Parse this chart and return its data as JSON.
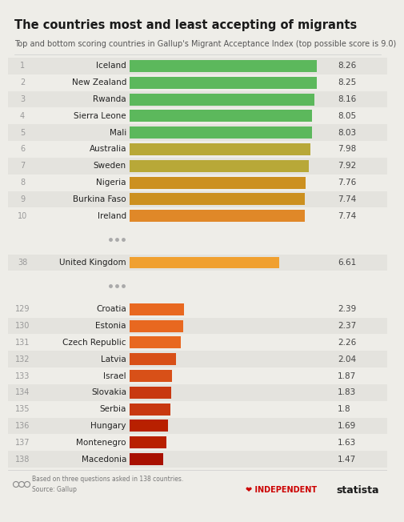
{
  "title": "The countries most and least accepting of migrants",
  "subtitle": "Top and bottom scoring countries in Gallup's Migrant Acceptance Index (top possible score is 9.0)",
  "background_color": "#eeede8",
  "rows": [
    {
      "rank": "1",
      "country": "Iceland",
      "value": 8.26,
      "color": "#5cb85c",
      "sep_before": false,
      "bold": false
    },
    {
      "rank": "2",
      "country": "New Zealand",
      "value": 8.25,
      "color": "#5cb85c",
      "sep_before": false,
      "bold": false
    },
    {
      "rank": "3",
      "country": "Rwanda",
      "value": 8.16,
      "color": "#5cb85c",
      "sep_before": false,
      "bold": false
    },
    {
      "rank": "4",
      "country": "Sierra Leone",
      "value": 8.05,
      "color": "#5cb85c",
      "sep_before": false,
      "bold": false
    },
    {
      "rank": "5",
      "country": "Mali",
      "value": 8.03,
      "color": "#5cb85c",
      "sep_before": false,
      "bold": false
    },
    {
      "rank": "6",
      "country": "Australia",
      "value": 7.98,
      "color": "#b8a838",
      "sep_before": false,
      "bold": false
    },
    {
      "rank": "7",
      "country": "Sweden",
      "value": 7.92,
      "color": "#b8a838",
      "sep_before": false,
      "bold": false
    },
    {
      "rank": "8",
      "country": "Nigeria",
      "value": 7.76,
      "color": "#cc9020",
      "sep_before": false,
      "bold": false
    },
    {
      "rank": "9",
      "country": "Burkina Faso",
      "value": 7.74,
      "color": "#cc9020",
      "sep_before": false,
      "bold": false
    },
    {
      "rank": "10",
      "country": "Ireland",
      "value": 7.74,
      "color": "#e08828",
      "sep_before": false,
      "bold": false
    },
    {
      "rank": "38",
      "country": "United Kingdom",
      "value": 6.61,
      "color": "#f0a030",
      "sep_before": true,
      "bold": false
    },
    {
      "rank": "129",
      "country": "Croatia",
      "value": 2.39,
      "color": "#e86820",
      "sep_before": true,
      "bold": false
    },
    {
      "rank": "130",
      "country": "Estonia",
      "value": 2.37,
      "color": "#e86820",
      "sep_before": false,
      "bold": false
    },
    {
      "rank": "131",
      "country": "Czech Republic",
      "value": 2.26,
      "color": "#e86820",
      "sep_before": false,
      "bold": false
    },
    {
      "rank": "132",
      "country": "Latvia",
      "value": 2.04,
      "color": "#d85018",
      "sep_before": false,
      "bold": false
    },
    {
      "rank": "133",
      "country": "Israel",
      "value": 1.87,
      "color": "#d85018",
      "sep_before": false,
      "bold": false
    },
    {
      "rank": "134",
      "country": "Slovakia",
      "value": 1.83,
      "color": "#c83810",
      "sep_before": false,
      "bold": false
    },
    {
      "rank": "135",
      "country": "Serbia",
      "value": 1.8,
      "color": "#c83810",
      "sep_before": false,
      "bold": false
    },
    {
      "rank": "136",
      "country": "Hungary",
      "value": 1.69,
      "color": "#b82000",
      "sep_before": false,
      "bold": false
    },
    {
      "rank": "137",
      "country": "Montenegro",
      "value": 1.63,
      "color": "#b82000",
      "sep_before": false,
      "bold": false
    },
    {
      "rank": "138",
      "country": "Macedonia",
      "value": 1.47,
      "color": "#a81000",
      "sep_before": false,
      "bold": false
    }
  ],
  "max_value": 9.0,
  "value_label_80": 1.8,
  "footer_left": "Based on three questions asked in 138 countries.\nSource: Gallup",
  "footer_right": "statista",
  "title_fontsize": 10.5,
  "subtitle_fontsize": 7,
  "label_fontsize": 7.5,
  "rank_fontsize": 7,
  "value_fontsize": 7.5
}
